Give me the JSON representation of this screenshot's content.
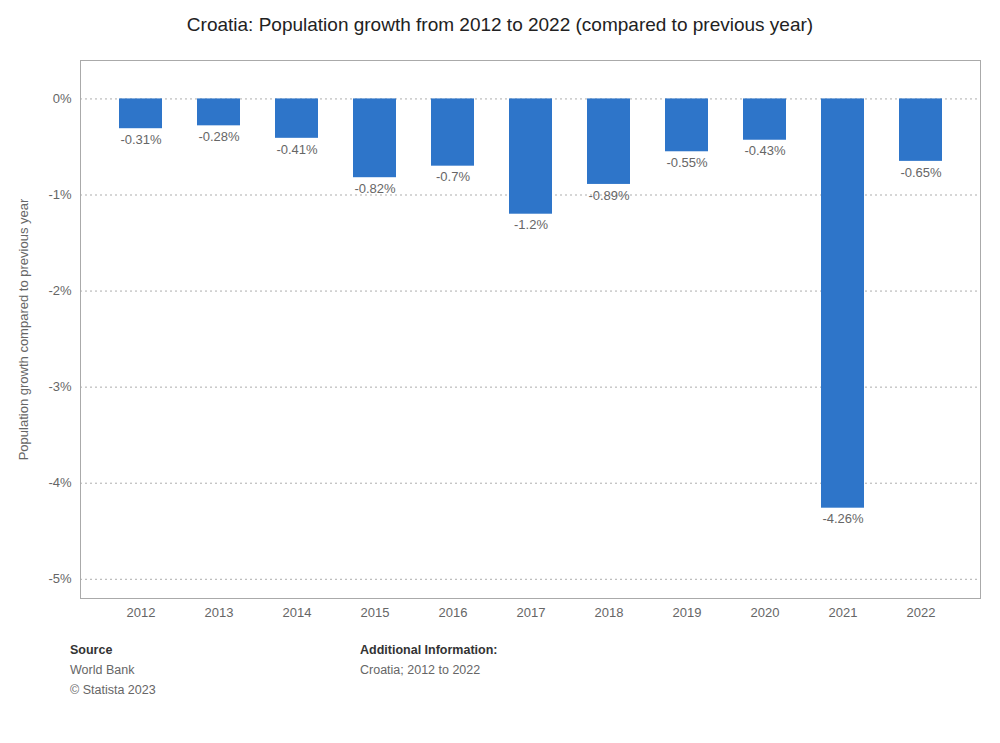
{
  "chart_data": {
    "type": "bar",
    "title": "Croatia: Population growth from 2012 to 2022 (compared to previous year)",
    "categories": [
      "2012",
      "2013",
      "2014",
      "2015",
      "2016",
      "2017",
      "2018",
      "2019",
      "2020",
      "2021",
      "2022"
    ],
    "values": [
      -0.31,
      -0.28,
      -0.41,
      -0.82,
      -0.7,
      -1.2,
      -0.89,
      -0.55,
      -0.43,
      -4.26,
      -0.65
    ],
    "value_labels": [
      "-0.31%",
      "-0.28%",
      "-0.41%",
      "-0.82%",
      "-0.7%",
      "-1.2%",
      "-0.89%",
      "-0.55%",
      "-0.43%",
      "-4.26%",
      "-0.65%"
    ],
    "data_labels": true,
    "color": "#2E75C9",
    "ylabel": "Population growth compared to previous year",
    "ylim": [
      -5.2,
      0.4
    ],
    "yticks": [
      {
        "value": 0,
        "label": "0%"
      },
      {
        "value": -1,
        "label": "-1%"
      },
      {
        "value": -2,
        "label": "-2%"
      },
      {
        "value": -3,
        "label": "-3%"
      },
      {
        "value": -4,
        "label": "-4%"
      },
      {
        "value": -5,
        "label": "-5%"
      }
    ],
    "grid": true,
    "annotations": [
      "Source",
      "World Bank",
      "© Statista 2023",
      "Additional Information:",
      "Croatia; 2012 to 2022"
    ]
  }
}
